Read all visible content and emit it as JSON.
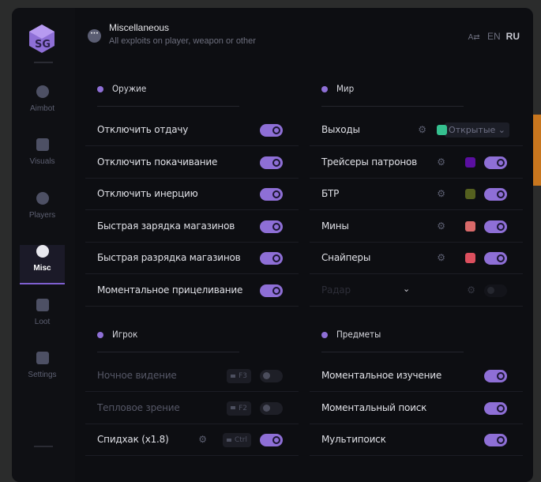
{
  "header": {
    "title": "Miscellaneous",
    "subtitle": "All exploits on player, weapon or other",
    "icon": "ellipsis-icon"
  },
  "language": {
    "icon": "translate-icon",
    "options": [
      "EN",
      "RU"
    ],
    "active": "RU"
  },
  "sidebar": {
    "logo": "SG",
    "items": [
      {
        "label": "Aimbot",
        "icon": "alien-icon"
      },
      {
        "label": "Visuals",
        "icon": "vr-goggles-icon"
      },
      {
        "label": "Players",
        "icon": "users-icon"
      },
      {
        "label": "Misc",
        "icon": "ellipsis-icon",
        "active": true
      },
      {
        "label": "Loot",
        "icon": "briefcase-icon"
      },
      {
        "label": "Settings",
        "icon": "list-icon"
      }
    ]
  },
  "colors": {
    "accent": "#8e6fd6"
  },
  "sections": [
    {
      "id": "weapon",
      "title": "Оружие",
      "icon": "gear-icon",
      "rows": [
        {
          "label": "Отключить отдачу",
          "on": true
        },
        {
          "label": "Отключить покачивание",
          "on": true
        },
        {
          "label": "Отключить инерцию",
          "on": true
        },
        {
          "label": "Быстрая зарядка магазинов",
          "on": true
        },
        {
          "label": "Быстрая разрядка магазинов",
          "on": true
        },
        {
          "label": "Моментальное прицеливание",
          "on": true
        }
      ]
    },
    {
      "id": "world",
      "title": "Мир",
      "icon": "ghost-icon",
      "rows": [
        {
          "label": "Выходы",
          "gear": true,
          "color": "#35c08f",
          "dropdown": "Открытые"
        },
        {
          "label": "Трейсеры патронов",
          "gear": true,
          "color": "#5a0fa0",
          "on": true
        },
        {
          "label": "БТР",
          "gear": true,
          "color": "#55601f",
          "on": true
        },
        {
          "label": "Мины",
          "gear": true,
          "color": "#d96a6a",
          "on": true
        },
        {
          "label": "Снайперы",
          "gear": true,
          "color": "#dc4f5e",
          "on": true
        },
        {
          "label": "Радар",
          "expand": true,
          "gear": true,
          "on": false,
          "faint": true
        }
      ]
    },
    {
      "id": "player",
      "title": "Игрок",
      "icon": "gear-icon",
      "rows": [
        {
          "label": "Ночное видение",
          "key": "F3",
          "on": false,
          "disabled": true
        },
        {
          "label": "Тепловое зрение",
          "key": "F2",
          "on": false,
          "disabled": true
        },
        {
          "label": "Спидхак (x1.8)",
          "gear": true,
          "key": "Ctrl",
          "on": true
        }
      ]
    },
    {
      "id": "items",
      "title": "Предметы",
      "icon": "ghost-icon",
      "rows": [
        {
          "label": "Моментальное изучение",
          "on": true
        },
        {
          "label": "Моментальный поиск",
          "on": true
        },
        {
          "label": "Мультипоиск",
          "on": true
        }
      ]
    }
  ]
}
